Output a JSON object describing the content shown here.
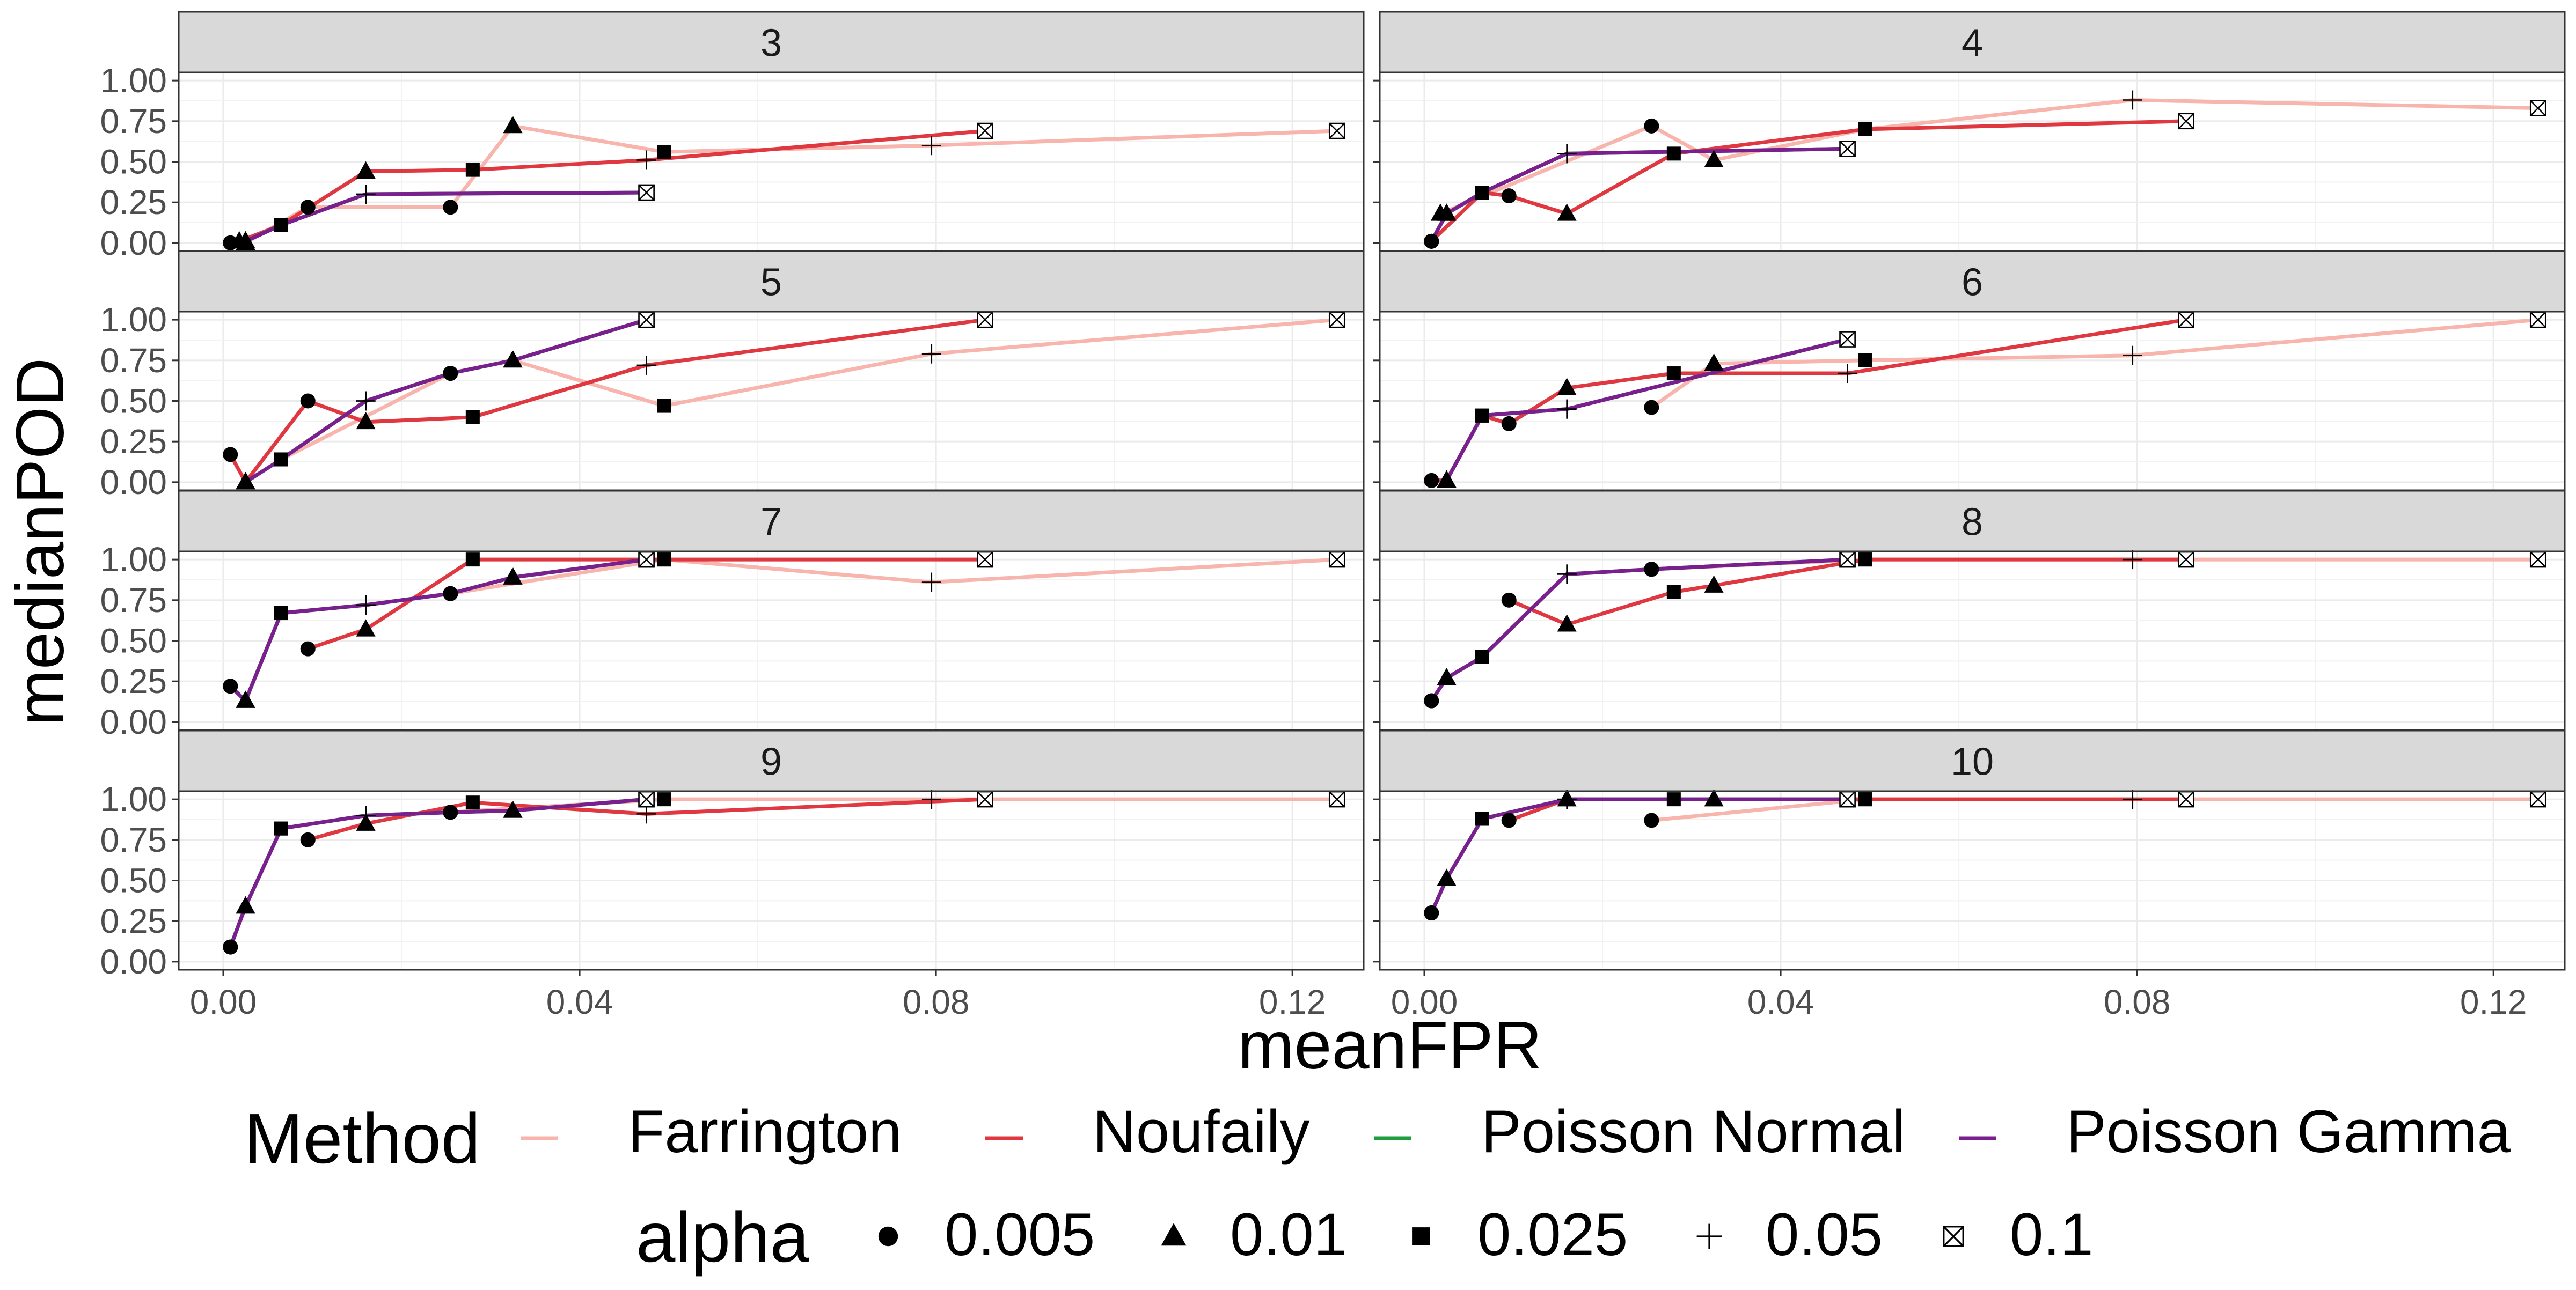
{
  "chart_data": {
    "type": "line",
    "xlabel": "meanFPR",
    "ylabel": "medianPOD",
    "xlim": [
      -0.005,
      0.128
    ],
    "ylim": [
      -0.05,
      1.05
    ],
    "x_ticks": [
      "0.00",
      "0.04",
      "0.08",
      "0.12"
    ],
    "y_ticks": [
      "0.00",
      "0.25",
      "0.50",
      "0.75",
      "1.00"
    ],
    "grid": true,
    "legend_position": "bottom",
    "methods": [
      {
        "name": "Farrington",
        "color": "#f8b5ad"
      },
      {
        "name": "Noufaily",
        "color": "#e03841"
      },
      {
        "name": "Poisson Normal",
        "color": "#1f9e3f"
      },
      {
        "name": "Poisson Gamma",
        "color": "#7a1f8e"
      }
    ],
    "alpha_levels": [
      {
        "label": "0.005",
        "shape": "circle"
      },
      {
        "label": "0.01",
        "shape": "triangle"
      },
      {
        "label": "0.025",
        "shape": "square"
      },
      {
        "label": "0.05",
        "shape": "plus"
      },
      {
        "label": "0.1",
        "shape": "boxx"
      }
    ],
    "panels": [
      {
        "label": "3",
        "series": {
          "Farrington": [
            [
              0.0025,
              0.0
            ],
            [
              0.0095,
              0.22
            ],
            [
              0.0255,
              0.22
            ],
            [
              0.0325,
              0.72
            ],
            [
              0.0495,
              0.56
            ],
            [
              0.0795,
              0.6
            ],
            [
              0.125,
              0.69
            ]
          ],
          "Noufaily": [
            [
              0.0018,
              0.01
            ],
            [
              0.0065,
              0.11
            ],
            [
              0.016,
              0.44
            ],
            [
              0.028,
              0.45
            ],
            [
              0.0475,
              0.51
            ],
            [
              0.0855,
              0.69
            ]
          ],
          "Poisson Normal": [
            [
              0.0008,
              0.0
            ],
            [
              0.0025,
              0.01
            ],
            [
              0.0065,
              0.11
            ],
            [
              0.016,
              0.3
            ],
            [
              0.0475,
              0.31
            ]
          ],
          "Poisson Gamma": [
            [
              0.0008,
              0.0
            ],
            [
              0.0025,
              0.01
            ],
            [
              0.0065,
              0.11
            ],
            [
              0.016,
              0.3
            ],
            [
              0.0475,
              0.31
            ]
          ]
        }
      },
      {
        "label": "4",
        "series": {
          "Farrington": [
            [
              0.0018,
              0.18
            ],
            [
              0.0255,
              0.72
            ],
            [
              0.0325,
              0.51
            ],
            [
              0.0495,
              0.7
            ],
            [
              0.0795,
              0.88
            ],
            [
              0.125,
              0.83
            ]
          ],
          "Noufaily": [
            [
              0.0008,
              0.01
            ],
            [
              0.0065,
              0.31
            ],
            [
              0.0095,
              0.29
            ],
            [
              0.016,
              0.18
            ],
            [
              0.028,
              0.55
            ],
            [
              0.0495,
              0.7
            ],
            [
              0.0855,
              0.75
            ]
          ],
          "Poisson Normal": [
            [
              0.0008,
              0.01
            ],
            [
              0.0025,
              0.18
            ],
            [
              0.0065,
              0.31
            ],
            [
              0.016,
              0.55
            ],
            [
              0.0475,
              0.58
            ]
          ],
          "Poisson Gamma": [
            [
              0.0008,
              0.01
            ],
            [
              0.0025,
              0.18
            ],
            [
              0.0065,
              0.31
            ],
            [
              0.016,
              0.55
            ],
            [
              0.0475,
              0.58
            ]
          ]
        }
      },
      {
        "label": "5",
        "series": {
          "Farrington": [
            [
              0.0065,
              0.14
            ],
            [
              0.0255,
              0.67
            ],
            [
              0.0325,
              0.75
            ],
            [
              0.0495,
              0.47
            ],
            [
              0.0795,
              0.79
            ],
            [
              0.125,
              1.0
            ]
          ],
          "Noufaily": [
            [
              0.0008,
              0.17
            ],
            [
              0.0025,
              0.0
            ],
            [
              0.0095,
              0.5
            ],
            [
              0.016,
              0.37
            ],
            [
              0.028,
              0.4
            ],
            [
              0.0475,
              0.72
            ],
            [
              0.0855,
              1.0
            ]
          ],
          "Poisson Normal": [
            [
              0.0025,
              0.0
            ],
            [
              0.0065,
              0.14
            ],
            [
              0.016,
              0.5
            ],
            [
              0.0255,
              0.67
            ],
            [
              0.0325,
              0.75
            ],
            [
              0.0475,
              1.0
            ]
          ],
          "Poisson Gamma": [
            [
              0.0025,
              0.0
            ],
            [
              0.0065,
              0.14
            ],
            [
              0.016,
              0.5
            ],
            [
              0.0255,
              0.67
            ],
            [
              0.0325,
              0.75
            ],
            [
              0.0475,
              1.0
            ]
          ]
        }
      },
      {
        "label": "6",
        "series": {
          "Farrington": [
            [
              0.0255,
              0.46
            ],
            [
              0.0325,
              0.73
            ],
            [
              0.0495,
              0.75
            ],
            [
              0.0795,
              0.78
            ],
            [
              0.125,
              1.0
            ]
          ],
          "Noufaily": [
            [
              0.0008,
              0.01
            ],
            [
              0.0025,
              0.01
            ],
            [
              0.0065,
              0.41
            ],
            [
              0.0095,
              0.36
            ],
            [
              0.016,
              0.58
            ],
            [
              0.028,
              0.67
            ],
            [
              0.0475,
              0.67
            ],
            [
              0.0855,
              1.0
            ]
          ],
          "Poisson Normal": [
            [
              0.0025,
              0.01
            ],
            [
              0.0065,
              0.41
            ],
            [
              0.016,
              0.45
            ],
            [
              0.0475,
              0.88
            ]
          ],
          "Poisson Gamma": [
            [
              0.0025,
              0.01
            ],
            [
              0.0065,
              0.41
            ],
            [
              0.016,
              0.45
            ],
            [
              0.0475,
              0.88
            ]
          ]
        }
      },
      {
        "label": "7",
        "series": {
          "Farrington": [
            [
              0.0255,
              0.79
            ],
            [
              0.0495,
              1.0
            ],
            [
              0.0795,
              0.86
            ],
            [
              0.125,
              1.0
            ]
          ],
          "Noufaily": [
            [
              0.0095,
              0.45
            ],
            [
              0.016,
              0.57
            ],
            [
              0.028,
              1.0
            ],
            [
              0.0495,
              1.0
            ],
            [
              0.0855,
              1.0
            ]
          ],
          "Poisson Normal": [
            [
              0.0008,
              0.22
            ],
            [
              0.0025,
              0.13
            ],
            [
              0.0065,
              0.67
            ],
            [
              0.016,
              0.72
            ],
            [
              0.0255,
              0.79
            ],
            [
              0.0325,
              0.89
            ],
            [
              0.0475,
              1.0
            ]
          ],
          "Poisson Gamma": [
            [
              0.0008,
              0.22
            ],
            [
              0.0025,
              0.13
            ],
            [
              0.0065,
              0.67
            ],
            [
              0.016,
              0.72
            ],
            [
              0.0255,
              0.79
            ],
            [
              0.0325,
              0.89
            ],
            [
              0.0475,
              1.0
            ]
          ]
        }
      },
      {
        "label": "8",
        "series": {
          "Farrington": [
            [
              0.0255,
              0.94
            ],
            [
              0.0495,
              1.0
            ],
            [
              0.0795,
              1.0
            ],
            [
              0.125,
              1.0
            ]
          ],
          "Noufaily": [
            [
              0.0095,
              0.75
            ],
            [
              0.016,
              0.6
            ],
            [
              0.028,
              0.8
            ],
            [
              0.0325,
              0.84
            ],
            [
              0.0495,
              1.0
            ],
            [
              0.0855,
              1.0
            ]
          ],
          "Poisson Normal": [
            [
              0.0008,
              0.13
            ],
            [
              0.0025,
              0.27
            ],
            [
              0.0065,
              0.4
            ],
            [
              0.016,
              0.91
            ],
            [
              0.0255,
              0.94
            ],
            [
              0.0475,
              1.0
            ]
          ],
          "Poisson Gamma": [
            [
              0.0008,
              0.13
            ],
            [
              0.0025,
              0.27
            ],
            [
              0.0065,
              0.4
            ],
            [
              0.016,
              0.91
            ],
            [
              0.0255,
              0.94
            ],
            [
              0.0475,
              1.0
            ]
          ]
        }
      },
      {
        "label": "9",
        "series": {
          "Farrington": [
            [
              0.0255,
              0.92
            ],
            [
              0.0495,
              1.0
            ],
            [
              0.0795,
              1.0
            ],
            [
              0.125,
              1.0
            ]
          ],
          "Noufaily": [
            [
              0.0095,
              0.75
            ],
            [
              0.016,
              0.85
            ],
            [
              0.028,
              0.98
            ],
            [
              0.0475,
              0.91
            ],
            [
              0.0855,
              1.0
            ]
          ],
          "Poisson Normal": [
            [
              0.0008,
              0.09
            ],
            [
              0.0025,
              0.34
            ],
            [
              0.0065,
              0.82
            ],
            [
              0.016,
              0.9
            ],
            [
              0.0255,
              0.92
            ],
            [
              0.0325,
              0.93
            ],
            [
              0.0475,
              1.0
            ]
          ],
          "Poisson Gamma": [
            [
              0.0008,
              0.09
            ],
            [
              0.0025,
              0.34
            ],
            [
              0.0065,
              0.82
            ],
            [
              0.016,
              0.9
            ],
            [
              0.0255,
              0.92
            ],
            [
              0.0325,
              0.93
            ],
            [
              0.0475,
              1.0
            ]
          ]
        }
      },
      {
        "label": "10",
        "series": {
          "Farrington": [
            [
              0.0255,
              0.87
            ],
            [
              0.0495,
              1.0
            ],
            [
              0.0795,
              1.0
            ],
            [
              0.125,
              1.0
            ]
          ],
          "Noufaily": [
            [
              0.0095,
              0.87
            ],
            [
              0.016,
              1.0
            ],
            [
              0.028,
              1.0
            ],
            [
              0.0325,
              1.0
            ],
            [
              0.0495,
              1.0
            ],
            [
              0.0855,
              1.0
            ]
          ],
          "Poisson Normal": [
            [
              0.0008,
              0.3
            ],
            [
              0.0025,
              0.51
            ],
            [
              0.0065,
              0.88
            ],
            [
              0.016,
              1.0
            ],
            [
              0.0475,
              1.0
            ]
          ],
          "Poisson Gamma": [
            [
              0.0008,
              0.3
            ],
            [
              0.0025,
              0.51
            ],
            [
              0.0065,
              0.88
            ],
            [
              0.016,
              1.0
            ],
            [
              0.0475,
              1.0
            ]
          ]
        }
      }
    ]
  }
}
